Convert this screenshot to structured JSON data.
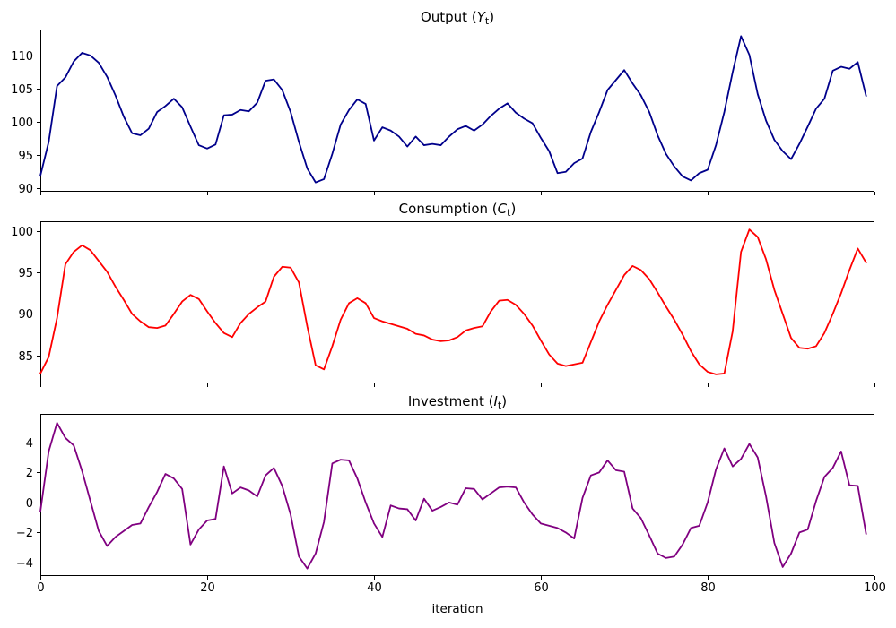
{
  "figure": {
    "background": "#ffffff"
  },
  "x_axis": {
    "label": "iteration",
    "xlim": [
      0,
      100
    ],
    "ticks": [
      0,
      20,
      40,
      60,
      80,
      100
    ]
  },
  "chart_data": [
    {
      "id": "output",
      "type": "line",
      "title_prefix": "Output (",
      "title_var": "Y",
      "title_sub": "t",
      "title_suffix": ")",
      "color": "#00008B",
      "ylim": [
        89.5,
        113.9
      ],
      "yticks": [
        90,
        95,
        100,
        105,
        110
      ],
      "x_start": 0,
      "x_step": 1,
      "values": [
        91.9,
        97.0,
        105.4,
        106.7,
        109.1,
        110.4,
        110.0,
        108.9,
        106.8,
        104.0,
        100.8,
        98.3,
        98.0,
        99.0,
        101.5,
        102.4,
        103.5,
        102.2,
        99.3,
        96.5,
        96.0,
        96.6,
        101.0,
        101.1,
        101.8,
        101.6,
        102.9,
        106.2,
        106.4,
        104.8,
        101.5,
        97.0,
        93.0,
        90.9,
        91.4,
        95.2,
        99.6,
        101.8,
        103.4,
        102.7,
        97.2,
        99.2,
        98.7,
        97.8,
        96.3,
        97.8,
        96.5,
        96.7,
        96.5,
        97.8,
        98.9,
        99.4,
        98.7,
        99.6,
        100.9,
        102.0,
        102.8,
        101.4,
        100.5,
        99.8,
        97.6,
        95.6,
        92.3,
        92.5,
        93.8,
        94.5,
        98.5,
        101.5,
        104.8,
        106.3,
        107.8,
        105.8,
        104.0,
        101.5,
        98.0,
        95.2,
        93.3,
        91.8,
        91.2,
        92.3,
        92.8,
        96.5,
        101.5,
        107.5,
        112.9,
        110.1,
        104.2,
        100.2,
        97.3,
        95.6,
        94.4,
        96.7,
        99.3,
        102.0,
        103.5,
        107.7,
        108.3,
        108.0,
        109.0,
        103.9
      ]
    },
    {
      "id": "consumption",
      "type": "line",
      "title_prefix": "Consumption (",
      "title_var": "C",
      "title_sub": "t",
      "title_suffix": ")",
      "color": "#FF0000",
      "ylim": [
        81.6,
        101.2
      ],
      "yticks": [
        85,
        90,
        95,
        100
      ],
      "x_start": 0,
      "x_step": 1,
      "values": [
        82.8,
        84.8,
        89.5,
        96.0,
        97.5,
        98.3,
        97.7,
        96.4,
        95.1,
        93.3,
        91.7,
        90.0,
        89.1,
        88.4,
        88.3,
        88.6,
        90.0,
        91.5,
        92.3,
        91.8,
        90.3,
        88.9,
        87.7,
        87.2,
        88.9,
        90.0,
        90.8,
        91.5,
        94.5,
        95.7,
        95.6,
        93.8,
        88.5,
        83.8,
        83.3,
        86.1,
        89.3,
        91.3,
        91.9,
        91.3,
        89.5,
        89.1,
        88.8,
        88.5,
        88.2,
        87.6,
        87.4,
        86.9,
        86.7,
        86.8,
        87.2,
        88.0,
        88.3,
        88.5,
        90.3,
        91.6,
        91.7,
        91.1,
        90.0,
        88.6,
        86.8,
        85.1,
        84.0,
        83.7,
        83.9,
        84.1,
        86.6,
        89.1,
        91.1,
        92.9,
        94.7,
        95.8,
        95.3,
        94.2,
        92.6,
        90.9,
        89.3,
        87.5,
        85.5,
        83.9,
        83.0,
        82.7,
        82.8,
        87.9,
        97.5,
        100.2,
        99.3,
        96.6,
        92.9,
        90.0,
        87.1,
        85.9,
        85.8,
        86.1,
        87.7,
        90.0,
        92.5,
        95.3,
        97.9,
        96.2
      ]
    },
    {
      "id": "investment",
      "type": "line",
      "title_prefix": "Investment (",
      "title_var": "I",
      "title_sub": "t",
      "title_suffix": ")",
      "color": "#800080",
      "ylim": [
        -4.9,
        5.9
      ],
      "yticks": [
        -4,
        -2,
        0,
        2,
        4
      ],
      "x_start": 0,
      "x_step": 1,
      "values": [
        -0.6,
        3.4,
        5.3,
        4.3,
        3.8,
        2.1,
        0.1,
        -1.9,
        -2.9,
        -2.3,
        -1.9,
        -1.5,
        -1.4,
        -0.3,
        0.7,
        1.9,
        1.6,
        0.9,
        -2.8,
        -1.8,
        -1.2,
        -1.1,
        2.4,
        0.6,
        1.0,
        0.8,
        0.4,
        1.8,
        2.3,
        1.1,
        -0.8,
        -3.6,
        -4.4,
        -3.4,
        -1.3,
        2.6,
        2.85,
        2.8,
        1.6,
        0.0,
        -1.4,
        -2.3,
        -0.2,
        -0.4,
        -0.45,
        -1.2,
        0.25,
        -0.55,
        -0.3,
        0.0,
        -0.15,
        0.95,
        0.9,
        0.2,
        0.6,
        1.0,
        1.05,
        1.0,
        0.0,
        -0.8,
        -1.4,
        -1.55,
        -1.7,
        -2.0,
        -2.4,
        0.3,
        1.8,
        2.0,
        2.8,
        2.15,
        2.05,
        -0.4,
        -1.05,
        -2.2,
        -3.4,
        -3.7,
        -3.6,
        -2.8,
        -1.7,
        -1.55,
        0.0,
        2.2,
        3.6,
        2.4,
        2.9,
        3.9,
        3.0,
        0.4,
        -2.7,
        -4.3,
        -3.4,
        -2.0,
        -1.8,
        0.1,
        1.7,
        2.3,
        3.4,
        1.15,
        1.1,
        -2.1
      ]
    }
  ]
}
